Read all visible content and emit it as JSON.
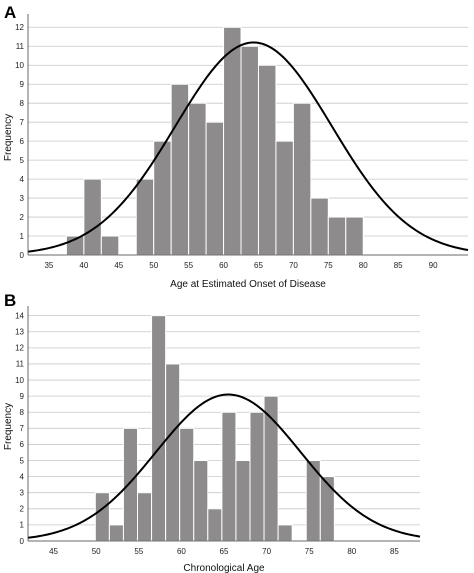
{
  "chart_data": [
    {
      "panel": "A",
      "type": "bar",
      "xlabel": "Age at Estimated Onset of Disease",
      "ylabel": "Frequency",
      "xlim": [
        32,
        95
      ],
      "ylim": [
        0,
        12.7
      ],
      "xticks": [
        35,
        40,
        45,
        50,
        55,
        60,
        65,
        70,
        75,
        80,
        85,
        90
      ],
      "yticks": [
        0,
        1,
        2,
        3,
        4,
        5,
        6,
        7,
        8,
        9,
        10,
        11,
        12
      ],
      "bin_width": 2.5,
      "bins": [
        {
          "start": 37.5,
          "value": 1
        },
        {
          "start": 40,
          "value": 4
        },
        {
          "start": 42.5,
          "value": 1
        },
        {
          "start": 45,
          "value": 0
        },
        {
          "start": 47.5,
          "value": 4
        },
        {
          "start": 50,
          "value": 6
        },
        {
          "start": 52.5,
          "value": 9
        },
        {
          "start": 55,
          "value": 8
        },
        {
          "start": 57.5,
          "value": 7
        },
        {
          "start": 60,
          "value": 12
        },
        {
          "start": 62.5,
          "value": 11
        },
        {
          "start": 65,
          "value": 10
        },
        {
          "start": 67.5,
          "value": 6
        },
        {
          "start": 70,
          "value": 8
        },
        {
          "start": 72.5,
          "value": 3
        },
        {
          "start": 75,
          "value": 2
        },
        {
          "start": 77.5,
          "value": 2
        }
      ],
      "normal_curve": {
        "mean": 64.3,
        "sd": 11.2,
        "peak": 11.2
      }
    },
    {
      "panel": "B",
      "type": "bar",
      "xlabel": "Chronological Age",
      "ylabel": "Frequency",
      "xlim": [
        42,
        88
      ],
      "ylim": [
        0,
        14.6
      ],
      "xticks": [
        45,
        50,
        55,
        60,
        65,
        70,
        75,
        80,
        85
      ],
      "yticks": [
        0,
        1,
        2,
        3,
        4,
        5,
        6,
        7,
        8,
        9,
        10,
        11,
        12,
        13,
        14
      ],
      "bin_width": 1.65,
      "bins": [
        {
          "start": 49.9,
          "value": 3
        },
        {
          "start": 51.55,
          "value": 1
        },
        {
          "start": 53.2,
          "value": 7
        },
        {
          "start": 54.85,
          "value": 3
        },
        {
          "start": 56.5,
          "value": 14
        },
        {
          "start": 58.15,
          "value": 11
        },
        {
          "start": 59.8,
          "value": 7
        },
        {
          "start": 61.45,
          "value": 5
        },
        {
          "start": 63.1,
          "value": 2
        },
        {
          "start": 64.75,
          "value": 8
        },
        {
          "start": 66.4,
          "value": 5
        },
        {
          "start": 68.05,
          "value": 8
        },
        {
          "start": 69.7,
          "value": 9
        },
        {
          "start": 71.35,
          "value": 1
        },
        {
          "start": 73.0,
          "value": 0
        },
        {
          "start": 74.65,
          "value": 5
        },
        {
          "start": 76.3,
          "value": 4
        }
      ],
      "normal_curve": {
        "mean": 65.5,
        "sd": 8.5,
        "peak": 9.1
      }
    }
  ]
}
